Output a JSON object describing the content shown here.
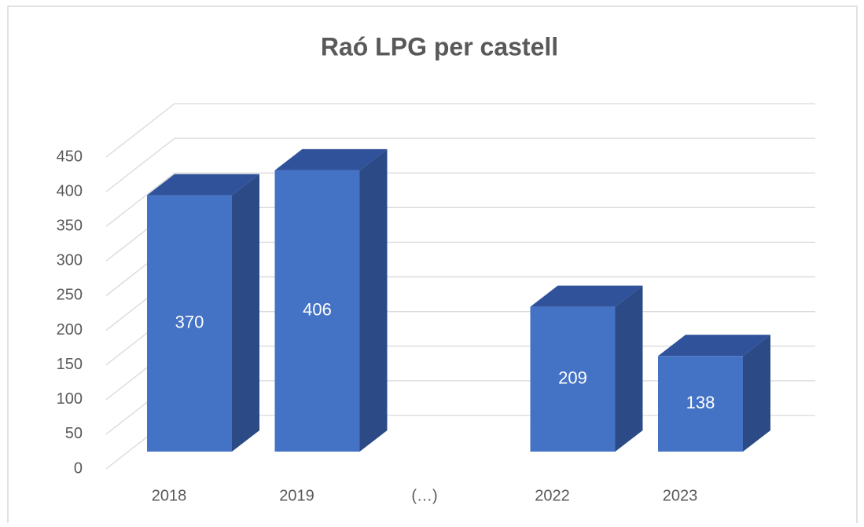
{
  "chart_data": {
    "type": "bar3d",
    "title": "Raó LPG per castell",
    "categories": [
      "2018",
      "2019",
      "(…)",
      "2022",
      "2023"
    ],
    "values": [
      370,
      406,
      null,
      209,
      138
    ],
    "color": "#4472c4",
    "ylim": [
      0,
      450
    ],
    "yticks": [
      0,
      50,
      100,
      150,
      200,
      250,
      300,
      350,
      400,
      450
    ],
    "grid": true
  }
}
